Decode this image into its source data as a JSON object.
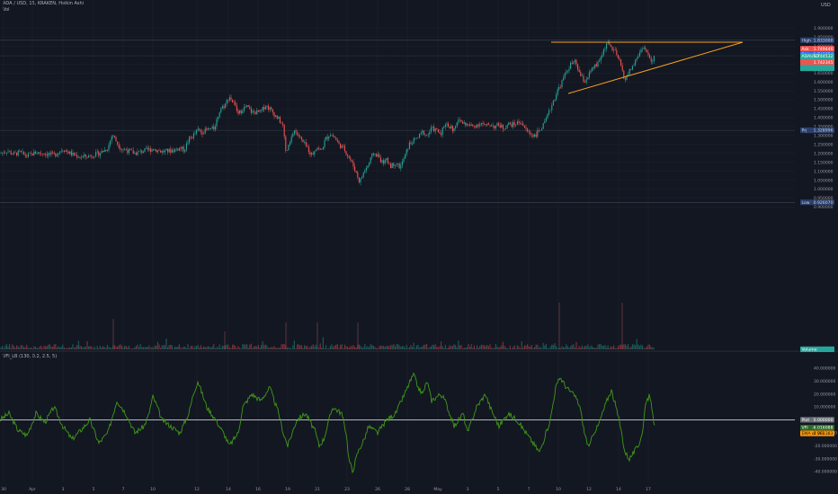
{
  "header": {
    "symbol_line": "ADA / USD, 15, KRAKEN, Heikin Ashi",
    "vol_label": "Vol",
    "vfi_label": "VFI_LB (130, 0.2, 2.5, 5)"
  },
  "currency": "USD",
  "colors": {
    "background": "#131722",
    "up": "#26a69a",
    "down": "#ef5350",
    "trendline": "#f7a21b",
    "vfi": "#3f9a17",
    "zero": "#b2b5be",
    "grid": "#1e222d",
    "high_label": "#2962ff",
    "ask": "#ef5350",
    "bid": "#2962ff",
    "last": "#26a69a",
    "vfi_signal": "#ff9800"
  },
  "price_axis": {
    "ticks": [
      "1.900000",
      "1.850000",
      "1.800000",
      "1.750000",
      "1.700000",
      "1.650000",
      "1.600000",
      "1.550000",
      "1.500000",
      "1.450000",
      "1.400000",
      "1.350000",
      "1.300000",
      "1.250000",
      "1.200000",
      "1.150000",
      "1.100000",
      "1.050000",
      "1.000000",
      "0.950000",
      "0.900000"
    ],
    "tick_values": [
      1.9,
      1.85,
      1.8,
      1.75,
      1.7,
      1.65,
      1.6,
      1.55,
      1.5,
      1.45,
      1.4,
      1.35,
      1.3,
      1.25,
      1.2,
      1.15,
      1.1,
      1.05,
      1.0,
      0.95,
      0.9
    ],
    "high_label": "High",
    "high_value": "1.833000",
    "low_label": "Low",
    "low_value": "0.926070",
    "prj_label": "Prj",
    "prj_value": "1.328996",
    "ask_label": "Ask",
    "ask_value": "1.749446",
    "bid_label": "Bid",
    "bid_value": "1.740854",
    "symbol_tag": "ADAUSD",
    "last_value": "1.744532",
    "countdown": "05:20",
    "extra_value": "1.742345",
    "volume_label": "Volume"
  },
  "vfi_axis": {
    "ticks": [
      "40.000000",
      "30.000000",
      "20.000000",
      "10.000000",
      "0.000000",
      "-10.000000",
      "-20.000000",
      "-30.000000",
      "-40.000000"
    ],
    "tick_values": [
      40,
      30,
      20,
      10,
      0,
      -10,
      -20,
      -30,
      -40
    ],
    "plot_label": "Plot",
    "plot_value": "0.000000",
    "vfi_label": "VFI",
    "vfi_value": "-6.016088",
    "signal_label": "EMA of VFI",
    "signal_value": "-1.961383"
  },
  "time_axis": {
    "labels": [
      "30",
      "Apr",
      "3",
      "5",
      "7",
      "10",
      "12",
      "14",
      "16",
      "19",
      "21",
      "23",
      "26",
      "28",
      "May",
      "3",
      "5",
      "7",
      "10",
      "12",
      "14",
      "17"
    ]
  },
  "chart_data": {
    "type": "candlestick",
    "price_range": [
      0.88,
      1.92
    ],
    "levels": {
      "high": 1.833,
      "low": 0.92607,
      "projection": 1.328996,
      "last": 1.744532
    },
    "trendline_resistance": [
      [
        "May 6",
        1.82
      ],
      [
        "May 16",
        1.82
      ]
    ],
    "trendline_support": [
      [
        "May 6",
        1.535
      ],
      [
        "May 16",
        1.822
      ]
    ],
    "price_path": [
      [
        0,
        1.2
      ],
      [
        8,
        1.215
      ],
      [
        15,
        1.195
      ],
      [
        22,
        1.205
      ],
      [
        30,
        1.185
      ],
      [
        40,
        1.205
      ],
      [
        50,
        1.2
      ],
      [
        60,
        1.19
      ],
      [
        70,
        1.225
      ],
      [
        80,
        1.195
      ],
      [
        90,
        1.18
      ],
      [
        100,
        1.185
      ],
      [
        110,
        1.2
      ],
      [
        120,
        1.23
      ],
      [
        125,
        1.31
      ],
      [
        130,
        1.26
      ],
      [
        135,
        1.225
      ],
      [
        140,
        1.22
      ],
      [
        150,
        1.2
      ],
      [
        160,
        1.215
      ],
      [
        170,
        1.225
      ],
      [
        180,
        1.21
      ],
      [
        190,
        1.215
      ],
      [
        200,
        1.23
      ],
      [
        205,
        1.22
      ],
      [
        210,
        1.28
      ],
      [
        215,
        1.3
      ],
      [
        220,
        1.33
      ],
      [
        225,
        1.32
      ],
      [
        230,
        1.33
      ],
      [
        238,
        1.34
      ],
      [
        245,
        1.45
      ],
      [
        250,
        1.47
      ],
      [
        255,
        1.52
      ],
      [
        260,
        1.48
      ],
      [
        265,
        1.42
      ],
      [
        270,
        1.45
      ],
      [
        275,
        1.46
      ],
      [
        280,
        1.43
      ],
      [
        285,
        1.43
      ],
      [
        290,
        1.43
      ],
      [
        295,
        1.47
      ],
      [
        300,
        1.45
      ],
      [
        305,
        1.42
      ],
      [
        310,
        1.39
      ],
      [
        315,
        1.35
      ],
      [
        318,
        1.2
      ],
      [
        322,
        1.25
      ],
      [
        327,
        1.33
      ],
      [
        332,
        1.3
      ],
      [
        337,
        1.26
      ],
      [
        342,
        1.23
      ],
      [
        347,
        1.19
      ],
      [
        352,
        1.24
      ],
      [
        357,
        1.21
      ],
      [
        362,
        1.28
      ],
      [
        367,
        1.31
      ],
      [
        372,
        1.29
      ],
      [
        377,
        1.25
      ],
      [
        382,
        1.23
      ],
      [
        388,
        1.18
      ],
      [
        394,
        1.12
      ],
      [
        400,
        1.04
      ],
      [
        405,
        1.1
      ],
      [
        410,
        1.14
      ],
      [
        415,
        1.2
      ],
      [
        420,
        1.19
      ],
      [
        425,
        1.15
      ],
      [
        430,
        1.16
      ],
      [
        435,
        1.13
      ],
      [
        440,
        1.15
      ],
      [
        445,
        1.12
      ],
      [
        450,
        1.18
      ],
      [
        455,
        1.25
      ],
      [
        460,
        1.27
      ],
      [
        465,
        1.29
      ],
      [
        470,
        1.32
      ],
      [
        475,
        1.3
      ],
      [
        480,
        1.34
      ],
      [
        485,
        1.33
      ],
      [
        490,
        1.31
      ],
      [
        495,
        1.37
      ],
      [
        500,
        1.35
      ],
      [
        505,
        1.33
      ],
      [
        510,
        1.39
      ],
      [
        515,
        1.37
      ],
      [
        520,
        1.36
      ],
      [
        525,
        1.35
      ],
      [
        530,
        1.36
      ],
      [
        535,
        1.37
      ],
      [
        540,
        1.35
      ],
      [
        545,
        1.365
      ],
      [
        550,
        1.35
      ],
      [
        555,
        1.36
      ],
      [
        560,
        1.34
      ],
      [
        565,
        1.365
      ],
      [
        570,
        1.36
      ],
      [
        575,
        1.37
      ],
      [
        580,
        1.375
      ],
      [
        585,
        1.33
      ],
      [
        590,
        1.31
      ],
      [
        595,
        1.3
      ],
      [
        600,
        1.33
      ],
      [
        605,
        1.36
      ],
      [
        610,
        1.42
      ],
      [
        615,
        1.49
      ],
      [
        620,
        1.55
      ],
      [
        625,
        1.6
      ],
      [
        630,
        1.66
      ],
      [
        635,
        1.7
      ],
      [
        640,
        1.71
      ],
      [
        645,
        1.64
      ],
      [
        650,
        1.6
      ],
      [
        655,
        1.64
      ],
      [
        660,
        1.68
      ],
      [
        665,
        1.7
      ],
      [
        670,
        1.76
      ],
      [
        675,
        1.82
      ],
      [
        680,
        1.79
      ],
      [
        685,
        1.76
      ],
      [
        690,
        1.7
      ],
      [
        695,
        1.61
      ],
      [
        700,
        1.66
      ],
      [
        705,
        1.7
      ],
      [
        710,
        1.75
      ],
      [
        715,
        1.8
      ],
      [
        720,
        1.76
      ],
      [
        725,
        1.7
      ],
      [
        728,
        1.745
      ]
    ],
    "vfi_range": [
      -45,
      45
    ],
    "vfi_path": [
      [
        0,
        0
      ],
      [
        10,
        5
      ],
      [
        20,
        -8
      ],
      [
        30,
        -12
      ],
      [
        40,
        5
      ],
      [
        50,
        -2
      ],
      [
        60,
        10
      ],
      [
        70,
        -5
      ],
      [
        80,
        -15
      ],
      [
        90,
        -8
      ],
      [
        100,
        0
      ],
      [
        110,
        -18
      ],
      [
        120,
        -10
      ],
      [
        130,
        15
      ],
      [
        140,
        5
      ],
      [
        150,
        -10
      ],
      [
        160,
        -5
      ],
      [
        165,
        3
      ],
      [
        170,
        18
      ],
      [
        175,
        10
      ],
      [
        180,
        0
      ],
      [
        190,
        -5
      ],
      [
        200,
        -10
      ],
      [
        210,
        5
      ],
      [
        215,
        20
      ],
      [
        220,
        30
      ],
      [
        225,
        20
      ],
      [
        230,
        10
      ],
      [
        240,
        0
      ],
      [
        250,
        -12
      ],
      [
        255,
        -20
      ],
      [
        265,
        -10
      ],
      [
        270,
        10
      ],
      [
        280,
        20
      ],
      [
        290,
        15
      ],
      [
        300,
        25
      ],
      [
        310,
        5
      ],
      [
        315,
        -10
      ],
      [
        320,
        -20
      ],
      [
        325,
        -10
      ],
      [
        330,
        0
      ],
      [
        340,
        5
      ],
      [
        350,
        -8
      ],
      [
        355,
        -20
      ],
      [
        360,
        -15
      ],
      [
        370,
        10
      ],
      [
        380,
        5
      ],
      [
        385,
        -10
      ],
      [
        388,
        -30
      ],
      [
        392,
        -40
      ],
      [
        398,
        -25
      ],
      [
        405,
        -15
      ],
      [
        410,
        -5
      ],
      [
        420,
        -10
      ],
      [
        430,
        0
      ],
      [
        440,
        5
      ],
      [
        450,
        20
      ],
      [
        455,
        28
      ],
      [
        460,
        35
      ],
      [
        465,
        25
      ],
      [
        470,
        20
      ],
      [
        475,
        30
      ],
      [
        480,
        15
      ],
      [
        490,
        20
      ],
      [
        495,
        15
      ],
      [
        505,
        -5
      ],
      [
        515,
        5
      ],
      [
        520,
        -10
      ],
      [
        530,
        10
      ],
      [
        540,
        20
      ],
      [
        545,
        10
      ],
      [
        555,
        -5
      ],
      [
        565,
        5
      ],
      [
        575,
        0
      ],
      [
        585,
        -10
      ],
      [
        595,
        -20
      ],
      [
        600,
        -25
      ],
      [
        605,
        -15
      ],
      [
        612,
        0
      ],
      [
        618,
        25
      ],
      [
        623,
        33
      ],
      [
        630,
        25
      ],
      [
        640,
        18
      ],
      [
        645,
        10
      ],
      [
        650,
        -10
      ],
      [
        655,
        -22
      ],
      [
        660,
        -10
      ],
      [
        665,
        -5
      ],
      [
        675,
        15
      ],
      [
        680,
        23
      ],
      [
        685,
        10
      ],
      [
        690,
        -5
      ],
      [
        695,
        -25
      ],
      [
        700,
        -30
      ],
      [
        710,
        -20
      ],
      [
        715,
        -8
      ],
      [
        718,
        14
      ],
      [
        722,
        18
      ],
      [
        725,
        10
      ],
      [
        728,
        -6
      ]
    ]
  }
}
